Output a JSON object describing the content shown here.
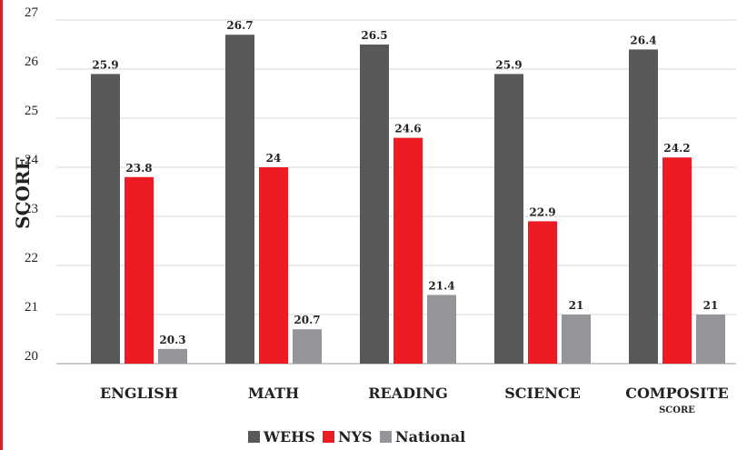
{
  "chart_data": {
    "type": "bar",
    "ylabel": "SCORE",
    "xlabel": "",
    "ylim": [
      20,
      27
    ],
    "yticks": [
      20,
      21,
      22,
      23,
      24,
      25,
      26,
      27
    ],
    "grid": true,
    "legend_placement": "bottom",
    "categories": [
      "ENGLISH",
      "MATH",
      "READING",
      "SCIENCE",
      "COMPOSITE"
    ],
    "category_sublabels": [
      "",
      "",
      "",
      "",
      "SCORE"
    ],
    "series": [
      {
        "name": "WEHS",
        "color": "#58595b",
        "values": [
          25.9,
          26.7,
          26.5,
          25.9,
          26.4
        ],
        "labels": [
          "25.9",
          "26.7",
          "26.5",
          "25.9",
          "26.4"
        ]
      },
      {
        "name": "NYS",
        "color": "#ed1c24",
        "values": [
          23.8,
          24,
          24.6,
          22.9,
          24.2
        ],
        "labels": [
          "23.8",
          "24",
          "24.6",
          "22.9",
          "24.2"
        ]
      },
      {
        "name": "National",
        "color": "#939598",
        "values": [
          20.3,
          20.7,
          21.4,
          21,
          21
        ],
        "labels": [
          "20.3",
          "20.7",
          "21.4",
          "21",
          "21"
        ]
      }
    ]
  }
}
